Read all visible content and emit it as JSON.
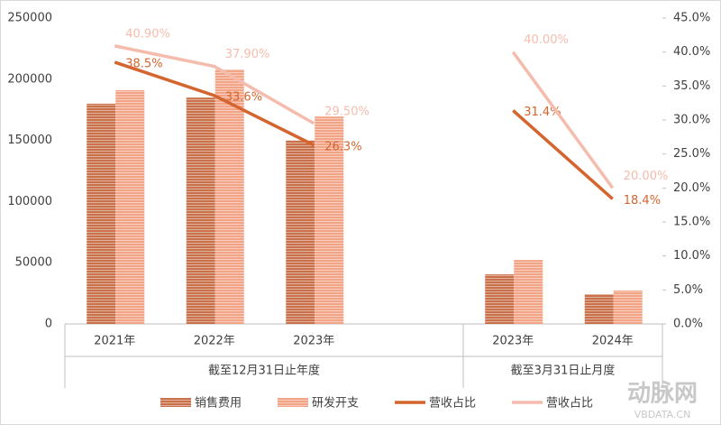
{
  "chart_data": {
    "type": "bar-line",
    "categories": [
      "2021年",
      "2022年",
      "2023年",
      null,
      "2023年",
      "2024年"
    ],
    "group_labels": [
      "截至12月31日止年度",
      "截至3月31日止月度"
    ],
    "series": [
      {
        "name": "销售费用",
        "type": "bar",
        "color": "#c8714a",
        "values": [
          180000,
          185000,
          150000,
          null,
          40500,
          24300
        ]
      },
      {
        "name": "研发开支",
        "type": "bar",
        "color": "#f2a487",
        "values": [
          191000,
          208000,
          169500,
          null,
          52300,
          27300
        ]
      },
      {
        "name": "营收占比",
        "type": "line",
        "axis": "y2",
        "color": "#d4652e",
        "values": [
          38.5,
          33.6,
          26.3,
          null,
          31.4,
          18.4
        ],
        "value_labels": [
          "38.5%",
          "33.6%",
          "26.3%",
          null,
          "31.4%",
          "18.4%"
        ]
      },
      {
        "name": "营收占比",
        "type": "line",
        "axis": "y2",
        "color": "#f5bcae",
        "values": [
          40.9,
          37.9,
          29.5,
          null,
          40.0,
          20.0
        ],
        "value_labels": [
          "40.90%",
          "37.90%",
          "29.50%",
          null,
          "40.00%",
          "20.00%"
        ]
      }
    ],
    "ylim": [
      0,
      250000
    ],
    "yticks": [
      0,
      50000,
      100000,
      150000,
      200000,
      250000
    ],
    "y2lim": [
      0,
      45
    ],
    "y2ticks": [
      {
        "value": 0,
        "label": "0.0%"
      },
      {
        "value": 5,
        "label": "5.0%"
      },
      {
        "value": 10,
        "label": "10.0%"
      },
      {
        "value": 15,
        "label": "15.0%"
      },
      {
        "value": 20,
        "label": "20.0%"
      },
      {
        "value": 25,
        "label": "25.0%"
      },
      {
        "value": 30,
        "label": "30.0%"
      },
      {
        "value": 35,
        "label": "35.0%"
      },
      {
        "value": 40,
        "label": "40.0%"
      },
      {
        "value": 45,
        "label": "45.0%"
      }
    ],
    "legend": "bottom",
    "watermark": "动脉网",
    "watermark_sub": "VBDATA.CN"
  }
}
